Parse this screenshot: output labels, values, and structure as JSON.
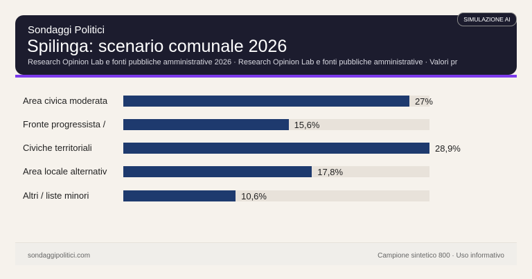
{
  "header": {
    "kicker": "Sondaggi Politici",
    "title": "Spilinga: scenario comunale 2026",
    "subtitle": "Research Opinion Lab e fonti pubbliche amministrative 2026 · Research Opinion Lab e fonti pubbliche amministrative · Valori pr",
    "badge": "SIMULAZIONE AI"
  },
  "chart_data": {
    "type": "bar",
    "orientation": "horizontal",
    "categories": [
      "Area civica moderata",
      "Fronte progressista /",
      "Civiche territoriali",
      "Area locale alternativ",
      "Altri / liste minori"
    ],
    "values": [
      27,
      15.6,
      28.9,
      17.8,
      10.6
    ],
    "labels": [
      "27%",
      "15,6%",
      "28,9%",
      "17,8%",
      "10,6%"
    ],
    "xlim": [
      0,
      28.9
    ],
    "grid": false,
    "colors": {
      "bar": "#1e3a6e",
      "track": "#e8e2da",
      "accent": "#7c3aed"
    }
  },
  "footer": {
    "left": "sondaggipolitici.com",
    "right": "Campione sintetico 800 · Uso informativo"
  }
}
